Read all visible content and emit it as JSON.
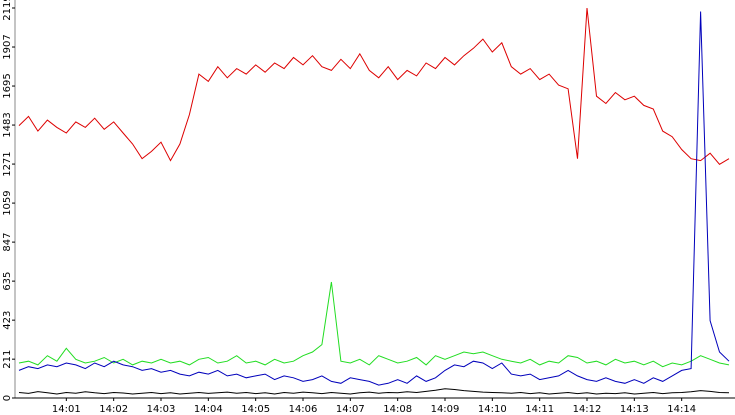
{
  "chart_data": {
    "type": "line",
    "categories": [
      null,
      null,
      null,
      null,
      null,
      "14:01",
      null,
      null,
      null,
      null,
      "14:02",
      null,
      null,
      null,
      null,
      "14:03",
      null,
      null,
      null,
      null,
      "14:04",
      null,
      null,
      null,
      null,
      "14:05",
      null,
      null,
      null,
      null,
      "14:06",
      null,
      null,
      null,
      null,
      "14:07",
      null,
      null,
      null,
      null,
      "14:08",
      null,
      null,
      null,
      null,
      "14:09",
      null,
      null,
      null,
      null,
      "14:10",
      null,
      null,
      null,
      null,
      "14:11",
      null,
      null,
      null,
      null,
      "14:12",
      null,
      null,
      null,
      null,
      "14:13",
      null,
      null,
      null,
      null,
      "14:14",
      null,
      null,
      null,
      null,
      null
    ],
    "ylim": [
      0,
      2119
    ],
    "yticks": [
      0,
      211,
      423,
      635,
      847,
      1059,
      1271,
      1483,
      1695,
      1907,
      2119
    ],
    "series": [
      {
        "color": "#dd0000",
        "values": [
          1480,
          1530,
          1450,
          1510,
          1470,
          1440,
          1500,
          1470,
          1520,
          1460,
          1500,
          1440,
          1380,
          1300,
          1340,
          1390,
          1290,
          1380,
          1540,
          1760,
          1720,
          1800,
          1740,
          1790,
          1760,
          1810,
          1770,
          1820,
          1790,
          1850,
          1810,
          1860,
          1800,
          1780,
          1840,
          1790,
          1870,
          1780,
          1740,
          1800,
          1730,
          1780,
          1750,
          1820,
          1790,
          1850,
          1810,
          1860,
          1900,
          1950,
          1880,
          1930,
          1800,
          1760,
          1790,
          1730,
          1760,
          1700,
          1680,
          1300,
          2119,
          1640,
          1600,
          1660,
          1620,
          1640,
          1590,
          1570,
          1450,
          1420,
          1350,
          1300,
          1290,
          1330,
          1270,
          1300
        ]
      },
      {
        "color": "#22dd22",
        "values": [
          190,
          200,
          180,
          230,
          200,
          270,
          210,
          190,
          200,
          220,
          190,
          210,
          180,
          200,
          190,
          210,
          190,
          200,
          180,
          210,
          220,
          190,
          200,
          230,
          190,
          200,
          180,
          210,
          190,
          200,
          230,
          250,
          290,
          630,
          200,
          190,
          210,
          180,
          230,
          210,
          190,
          200,
          220,
          180,
          230,
          210,
          230,
          250,
          240,
          250,
          230,
          210,
          200,
          190,
          210,
          180,
          200,
          190,
          230,
          220,
          190,
          200,
          180,
          210,
          190,
          200,
          180,
          200,
          170,
          190,
          180,
          200,
          230,
          210,
          190,
          180
        ]
      },
      {
        "color": "#0000bb",
        "values": [
          150,
          170,
          160,
          180,
          170,
          190,
          180,
          160,
          190,
          170,
          200,
          180,
          170,
          150,
          160,
          140,
          150,
          130,
          120,
          140,
          130,
          150,
          120,
          130,
          110,
          120,
          130,
          100,
          120,
          110,
          90,
          100,
          120,
          90,
          80,
          110,
          100,
          90,
          70,
          80,
          100,
          80,
          120,
          90,
          110,
          150,
          180,
          170,
          200,
          190,
          160,
          190,
          130,
          120,
          130,
          100,
          110,
          120,
          150,
          120,
          100,
          90,
          110,
          90,
          80,
          100,
          80,
          110,
          90,
          120,
          150,
          160,
          2100,
          420,
          250,
          200
        ]
      },
      {
        "color": "#000000",
        "values": [
          30,
          25,
          35,
          28,
          22,
          30,
          26,
          34,
          28,
          24,
          30,
          27,
          22,
          26,
          30,
          24,
          28,
          22,
          26,
          30,
          25,
          28,
          32,
          26,
          30,
          24,
          28,
          22,
          30,
          26,
          32,
          28,
          24,
          30,
          26,
          22,
          28,
          32,
          26,
          30,
          28,
          34,
          30,
          36,
          42,
          50,
          46,
          40,
          36,
          32,
          30,
          28,
          26,
          30,
          24,
          28,
          22,
          26,
          30,
          24,
          28,
          22,
          26,
          24,
          28,
          22,
          26,
          30,
          24,
          28,
          30,
          34,
          40,
          36,
          30,
          28
        ]
      }
    ]
  }
}
